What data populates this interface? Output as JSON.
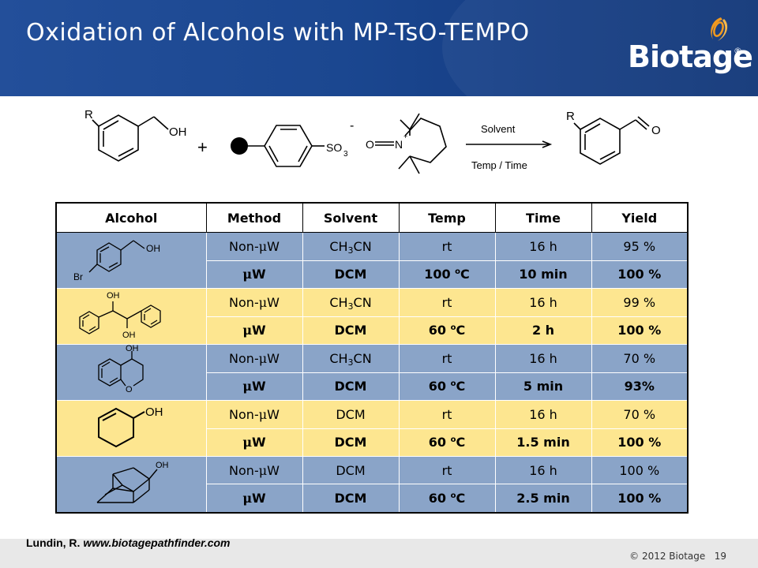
{
  "slide": {
    "title": "Oxidation of Alcohols with MP-TsO-TEMPO",
    "logo_text": "Biotage",
    "logo_reg": "®"
  },
  "scheme": {
    "reactant_r": "R",
    "reactant_oh": "OH",
    "plus": "+",
    "so3": "SO",
    "so3_sub": "3",
    "charge_minus": "-",
    "oxo": "O",
    "nitrogen": "N",
    "charge_plus": "+",
    "arrow_top": "Solvent",
    "arrow_bottom": "Temp / Time",
    "product_r": "R",
    "product_o": "O"
  },
  "table": {
    "headers": [
      "Alcohol",
      "Method",
      "Solvent",
      "Temp",
      "Time",
      "Yield"
    ],
    "structure_labels": {
      "s1_oh": "OH",
      "s1_br": "Br",
      "s2_oh_top": "OH",
      "s2_oh_bottom": "OH",
      "s3_oh": "OH",
      "s3_o": "O",
      "s4_oh": "OH",
      "s5_oh": "OH"
    },
    "rows": [
      {
        "method_prefix": "Non-",
        "method_mu": "μ",
        "method_suffix": "W",
        "solvent": "CH",
        "solvent_sub": "3",
        "solvent_tail": "CN",
        "temp": "rt",
        "temp_sup": "",
        "temp_unit": "",
        "time": "16 h",
        "yield": "95 %"
      },
      {
        "method_prefix": "",
        "method_mu": "μ",
        "method_suffix": "W",
        "solvent": "DCM",
        "solvent_sub": "",
        "solvent_tail": "",
        "temp": "100 ",
        "temp_sup": "o",
        "temp_unit": "C",
        "time": "10 min",
        "yield": "100 %"
      },
      {
        "method_prefix": "Non-",
        "method_mu": "μ",
        "method_suffix": "W",
        "solvent": "CH",
        "solvent_sub": "3",
        "solvent_tail": "CN",
        "temp": "rt",
        "temp_sup": "",
        "temp_unit": "",
        "time": "16 h",
        "yield": "99 %"
      },
      {
        "method_prefix": "",
        "method_mu": "μ",
        "method_suffix": "W",
        "solvent": "DCM",
        "solvent_sub": "",
        "solvent_tail": "",
        "temp": "60 ",
        "temp_sup": "o",
        "temp_unit": "C",
        "time": "2 h",
        "yield": "100 %"
      },
      {
        "method_prefix": "Non-",
        "method_mu": "μ",
        "method_suffix": "W",
        "solvent": "CH",
        "solvent_sub": "3",
        "solvent_tail": "CN",
        "temp": "rt",
        "temp_sup": "",
        "temp_unit": "",
        "time": "16 h",
        "yield": "70 %"
      },
      {
        "method_prefix": "",
        "method_mu": "μ",
        "method_suffix": "W",
        "solvent": "DCM",
        "solvent_sub": "",
        "solvent_tail": "",
        "temp": "60 ",
        "temp_sup": "o",
        "temp_unit": "C",
        "time": "5 min",
        "yield": "93%"
      },
      {
        "method_prefix": "Non-",
        "method_mu": "μ",
        "method_suffix": "W",
        "solvent": "DCM",
        "solvent_sub": "",
        "solvent_tail": "",
        "temp": "rt",
        "temp_sup": "",
        "temp_unit": "",
        "time": "16 h",
        "yield": "70 %"
      },
      {
        "method_prefix": "",
        "method_mu": "μ",
        "method_suffix": "W",
        "solvent": "DCM",
        "solvent_sub": "",
        "solvent_tail": "",
        "temp": "60 ",
        "temp_sup": "o",
        "temp_unit": "C",
        "time": "1.5 min",
        "yield": "100 %"
      },
      {
        "method_prefix": "Non-",
        "method_mu": "μ",
        "method_suffix": "W",
        "solvent": "DCM",
        "solvent_sub": "",
        "solvent_tail": "",
        "temp": "rt",
        "temp_sup": "",
        "temp_unit": "",
        "time": "16 h",
        "yield": "100 %"
      },
      {
        "method_prefix": "",
        "method_mu": "μ",
        "method_suffix": "W",
        "solvent": "DCM",
        "solvent_sub": "",
        "solvent_tail": "",
        "temp": "60 ",
        "temp_sup": "o",
        "temp_unit": "C",
        "time": "2.5 min",
        "yield": "100 %"
      }
    ]
  },
  "footer": {
    "citation_author": "Lundin, R. ",
    "citation_url": "www.biotagepathfinder.com",
    "copyright": "© 2012 Biotage",
    "page_number": "19"
  },
  "colors": {
    "header_blue": "#1b4790",
    "row_blue": "#8aa4c8",
    "row_yellow": "#fde690",
    "logo_orange": "#f39a1e"
  }
}
